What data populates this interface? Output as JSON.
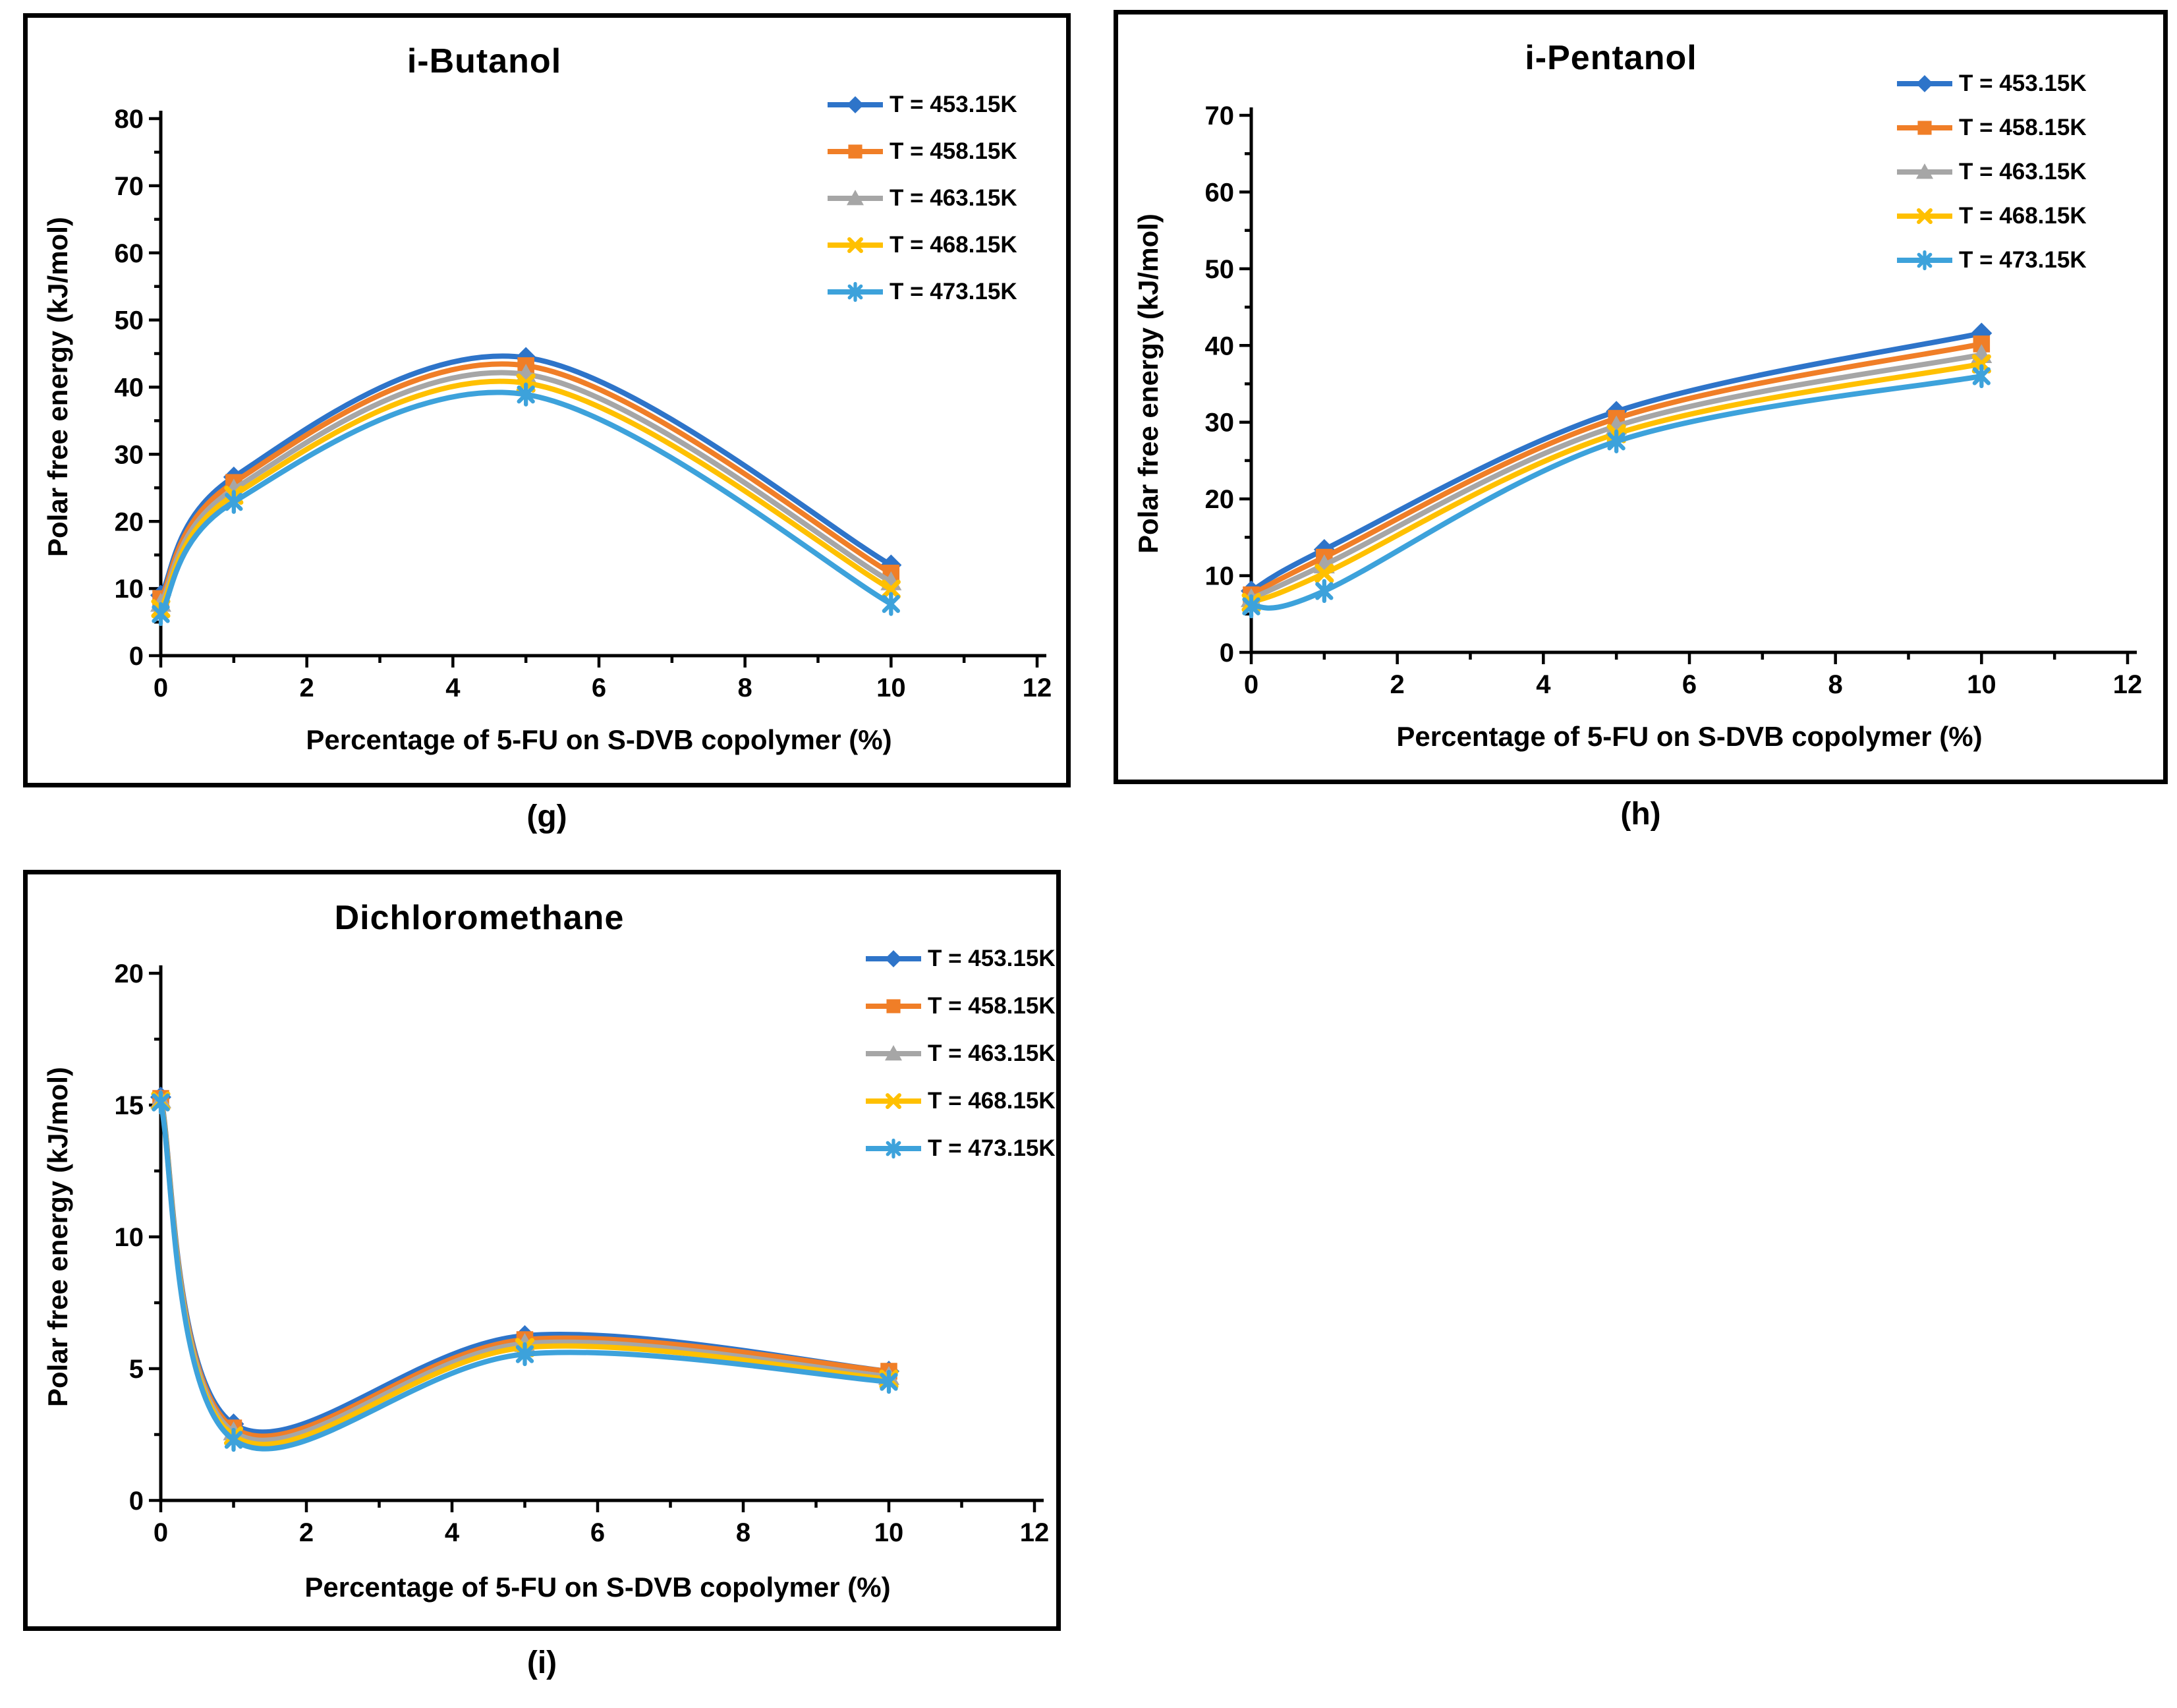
{
  "chart_data": [
    {
      "type": "line",
      "panel": "g",
      "caption": "(g)",
      "title": "i-Butanol",
      "xlabel": "Percentage of 5-FU on S-DVB copolymer (%)",
      "ylabel": "Polar free energy (kJ/mol)",
      "x": [
        0,
        1,
        5,
        10
      ],
      "xlim": [
        0,
        12
      ],
      "ylim": [
        0,
        80
      ],
      "x_major": 2,
      "x_minor": 1,
      "y_major": 10,
      "y_minor": 5,
      "grid": false,
      "legend_position": "top-right-inside",
      "series": [
        {
          "name": "T = 453.15K",
          "color": "#2E74C9",
          "marker": "diamond",
          "values": [
            9.0,
            26.6,
            44.4,
            13.5
          ]
        },
        {
          "name": "T = 458.15K",
          "color": "#F07E27",
          "marker": "square",
          "values": [
            8.5,
            25.8,
            43.2,
            12.3
          ]
        },
        {
          "name": "T = 463.15K",
          "color": "#A6A6A6",
          "marker": "triangle",
          "values": [
            7.8,
            24.8,
            41.9,
            11.0
          ]
        },
        {
          "name": "T = 468.15K",
          "color": "#FFC000",
          "marker": "x",
          "values": [
            7.0,
            23.9,
            40.6,
            9.9
          ]
        },
        {
          "name": "T = 473.15K",
          "color": "#3DA2DB",
          "marker": "asterisk",
          "values": [
            6.2,
            22.9,
            38.9,
            7.7
          ]
        }
      ]
    },
    {
      "type": "line",
      "panel": "h",
      "caption": "(h)",
      "title": "i-Pentanol",
      "xlabel": "Percentage of 5-FU on S-DVB copolymer (%)",
      "ylabel": "Polar free energy (kJ/mol)",
      "x": [
        0,
        1,
        5,
        10
      ],
      "xlim": [
        0,
        12
      ],
      "ylim": [
        0,
        70
      ],
      "x_major": 2,
      "x_minor": 1,
      "y_major": 10,
      "y_minor": 5,
      "grid": false,
      "legend_position": "top-right-inside",
      "series": [
        {
          "name": "T = 453.15K",
          "color": "#2E74C9",
          "marker": "diamond",
          "values": [
            8.0,
            13.4,
            31.4,
            41.6
          ]
        },
        {
          "name": "T = 458.15K",
          "color": "#F07E27",
          "marker": "square",
          "values": [
            7.5,
            12.4,
            30.5,
            40.2
          ]
        },
        {
          "name": "T = 463.15K",
          "color": "#A6A6A6",
          "marker": "triangle",
          "values": [
            7.0,
            11.4,
            29.5,
            38.8
          ]
        },
        {
          "name": "T = 468.15K",
          "color": "#FFC000",
          "marker": "x",
          "values": [
            6.5,
            10.3,
            28.5,
            37.6
          ]
        },
        {
          "name": "T = 473.15K",
          "color": "#3DA2DB",
          "marker": "asterisk",
          "values": [
            6.0,
            8.0,
            27.5,
            36.0
          ]
        }
      ]
    },
    {
      "type": "line",
      "panel": "i",
      "caption": "(i)",
      "title": "Dichloromethane",
      "xlabel": "Percentage of 5-FU on S-DVB copolymer (%)",
      "ylabel": "Polar free energy (kJ/mol)",
      "x": [
        0,
        1,
        5,
        10
      ],
      "xlim": [
        0,
        12
      ],
      "ylim": [
        0,
        20
      ],
      "x_major": 2,
      "x_minor": 1,
      "y_major": 5,
      "y_minor": 2.5,
      "grid": false,
      "legend_position": "top-right-inside",
      "series": [
        {
          "name": "T = 453.15K",
          "color": "#2E74C9",
          "marker": "diamond",
          "values": [
            15.3,
            2.9,
            6.25,
            4.9
          ]
        },
        {
          "name": "T = 458.15K",
          "color": "#F07E27",
          "marker": "square",
          "values": [
            15.25,
            2.75,
            6.1,
            4.9
          ]
        },
        {
          "name": "T = 463.15K",
          "color": "#A6A6A6",
          "marker": "triangle",
          "values": [
            15.2,
            2.6,
            5.95,
            4.7
          ]
        },
        {
          "name": "T = 468.15K",
          "color": "#FFC000",
          "marker": "x",
          "values": [
            15.15,
            2.45,
            5.8,
            4.6
          ]
        },
        {
          "name": "T = 473.15K",
          "color": "#3DA2DB",
          "marker": "asterisk",
          "values": [
            15.1,
            2.3,
            5.55,
            4.5
          ]
        }
      ]
    }
  ]
}
